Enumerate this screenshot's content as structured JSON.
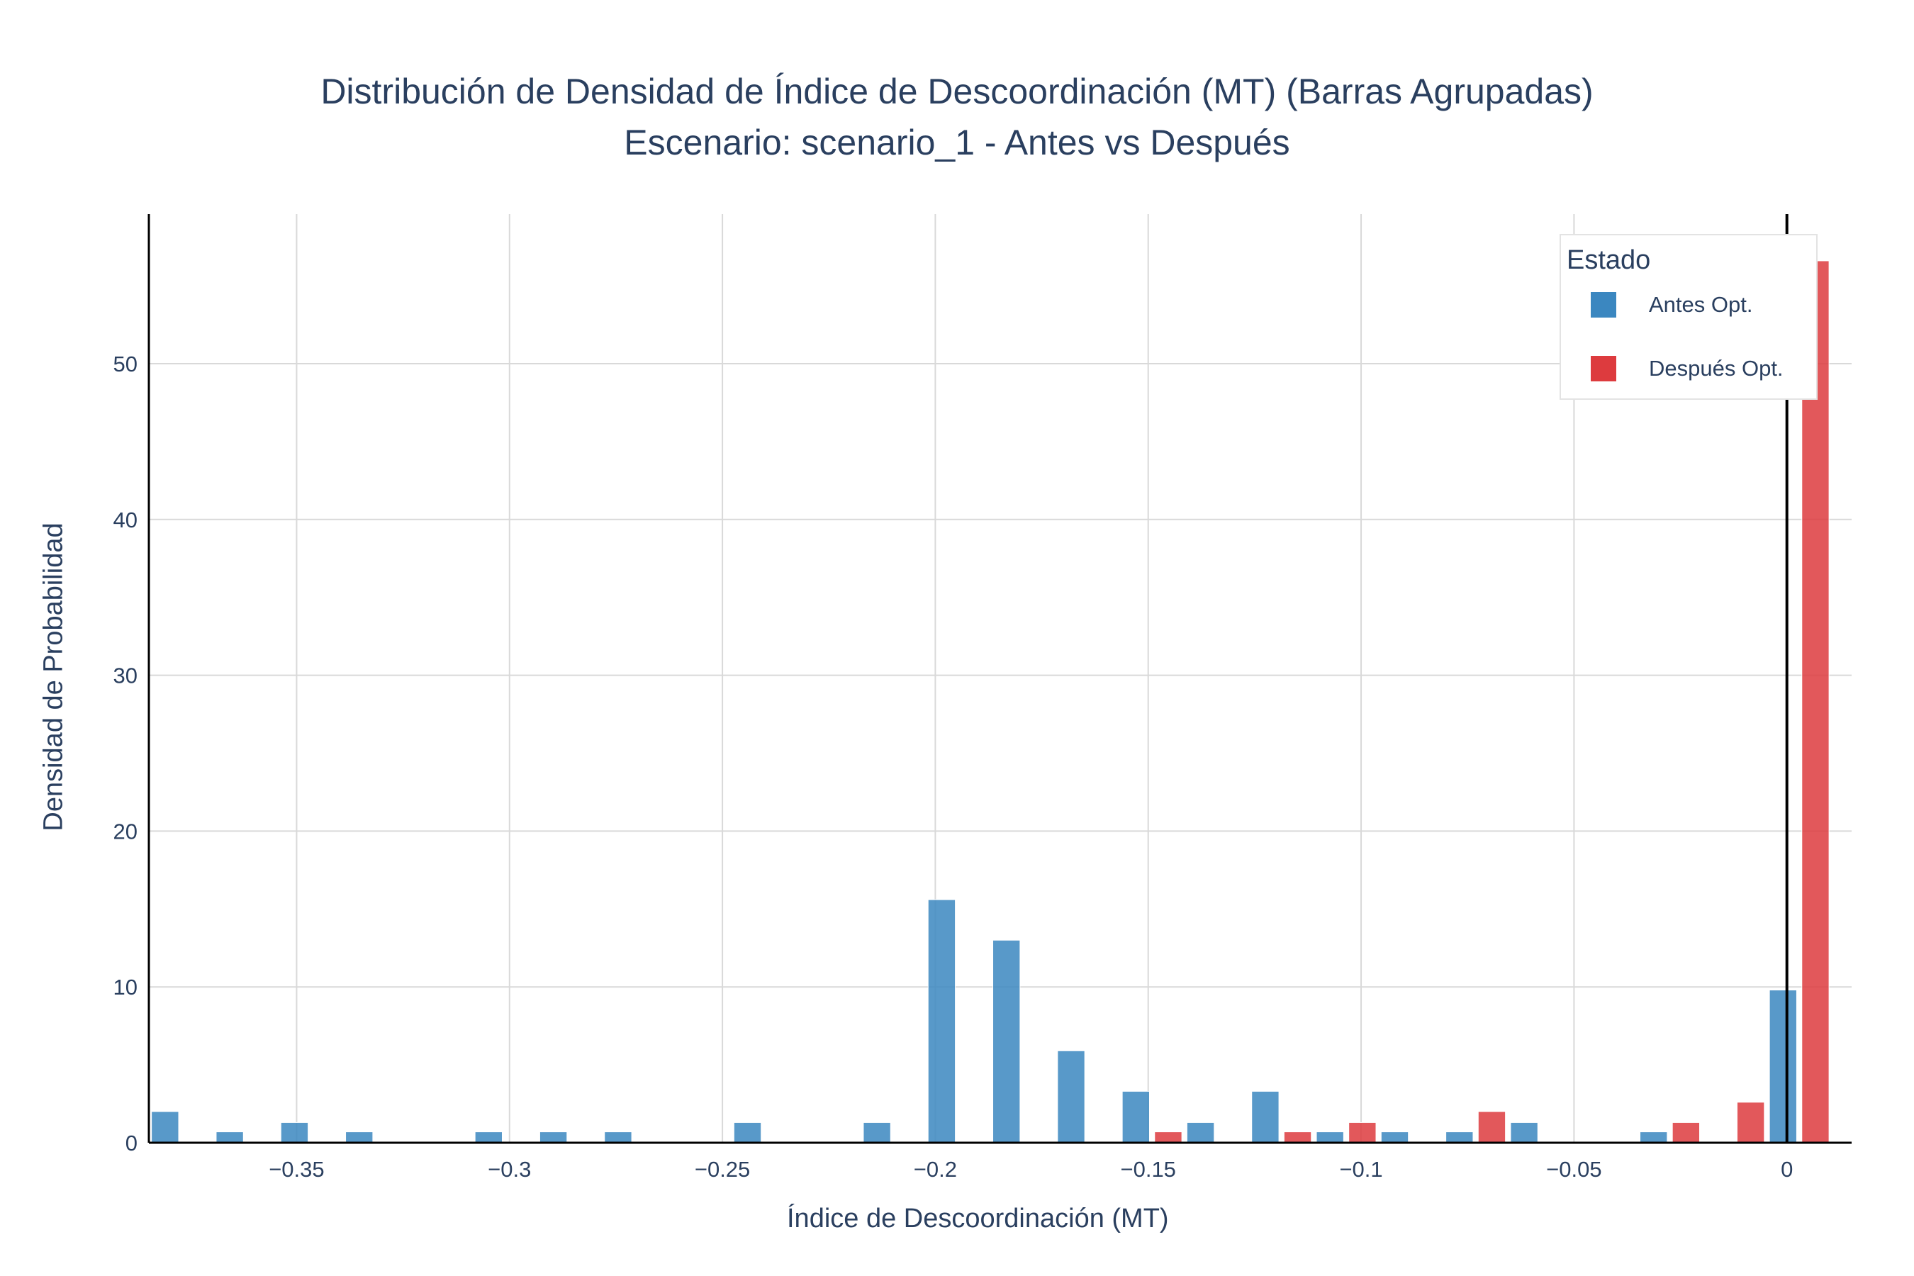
{
  "title": {
    "line1": "Distribución de Densidad de Índice de Descoordinación (MT) (Barras Agrupadas)",
    "line2": "Escenario: scenario_1 - Antes vs Después"
  },
  "colors": {
    "antes": "#3b87c0",
    "despues": "#dd3b3e",
    "grid": "#d9d9d9",
    "axis": "#000000"
  },
  "legend": {
    "title": "Estado",
    "items": [
      "Antes Opt.",
      "Después Opt."
    ]
  },
  "chart_data": {
    "type": "bar",
    "barmode": "group",
    "title": "Distribución de Densidad de Índice de Descoordinación (MT) (Barras Agrupadas)",
    "subtitle": "Escenario: scenario_1 - Antes vs Después",
    "xlabel": "Índice de Descoordinación (MT)",
    "ylabel": "Densidad de Probabilidad",
    "xlim": [
      -0.3847,
      0.0152
    ],
    "ylim": [
      0,
      59.6
    ],
    "bin_width": 0.0152,
    "x_ticks": [
      {
        "value": -0.35,
        "label": "−0.35"
      },
      {
        "value": -0.3,
        "label": "−0.3"
      },
      {
        "value": -0.25,
        "label": "−0.25"
      },
      {
        "value": -0.2,
        "label": "−0.2"
      },
      {
        "value": -0.15,
        "label": "−0.15"
      },
      {
        "value": -0.1,
        "label": "−0.1"
      },
      {
        "value": -0.05,
        "label": "−0.05"
      },
      {
        "value": 0,
        "label": "0"
      }
    ],
    "y_ticks": [
      {
        "value": 0,
        "label": "0"
      },
      {
        "value": 10,
        "label": "10"
      },
      {
        "value": 20,
        "label": "20"
      },
      {
        "value": 30,
        "label": "30"
      },
      {
        "value": 40,
        "label": "40"
      },
      {
        "value": 50,
        "label": "50"
      }
    ],
    "grid": true,
    "legend_position": "top-right",
    "zero_line": 0,
    "series": [
      {
        "name": "Antes Opt.",
        "color": "#3b87c0",
        "x": [
          -0.3771,
          -0.3619,
          -0.3467,
          -0.3315,
          -0.3011,
          -0.2859,
          -0.2707,
          -0.2403,
          -0.2099,
          -0.1947,
          -0.1795,
          -0.1643,
          -0.1491,
          -0.1339,
          -0.1187,
          -0.1035,
          -0.0883,
          -0.0731,
          -0.0579,
          -0.0275,
          0.0029
        ],
        "values": [
          2.0,
          0.7,
          1.3,
          0.7,
          0.7,
          0.7,
          0.7,
          1.3,
          1.3,
          15.6,
          13.0,
          5.9,
          3.3,
          1.3,
          3.3,
          0.7,
          0.7,
          0.7,
          1.3,
          0.7,
          9.8
        ]
      },
      {
        "name": "Después Opt.",
        "color": "#dd3b3e",
        "x": [
          -0.1491,
          -0.1187,
          -0.1035,
          -0.0731,
          -0.0275,
          -0.0123,
          0.0029
        ],
        "values": [
          0.7,
          0.7,
          1.3,
          2.0,
          1.3,
          2.6,
          56.6
        ]
      }
    ]
  }
}
